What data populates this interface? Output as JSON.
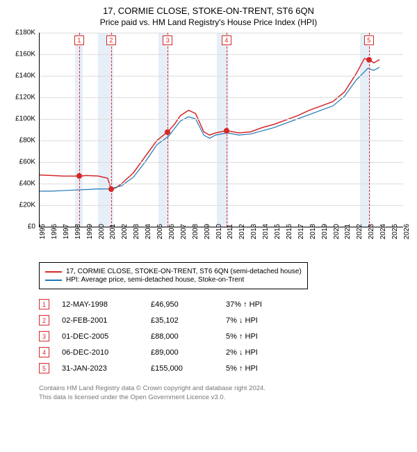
{
  "title": "17, CORMIE CLOSE, STOKE-ON-TRENT, ST6 6QN",
  "subtitle": "Price paid vs. HM Land Registry's House Price Index (HPI)",
  "chart": {
    "type": "line",
    "background_color": "#ffffff",
    "grid_color": "#dddddd",
    "ylim": [
      0,
      180000
    ],
    "ytick_step": 20000,
    "yticks": [
      "£0",
      "£20K",
      "£40K",
      "£60K",
      "£80K",
      "£100K",
      "£120K",
      "£140K",
      "£160K",
      "£180K"
    ],
    "xlim": [
      1995,
      2026
    ],
    "xticks": [
      1995,
      1996,
      1997,
      1998,
      1999,
      2000,
      2001,
      2002,
      2003,
      2004,
      2005,
      2006,
      2007,
      2008,
      2009,
      2010,
      2011,
      2012,
      2013,
      2014,
      2015,
      2016,
      2017,
      2018,
      2019,
      2020,
      2021,
      2022,
      2023,
      2024,
      2025,
      2026
    ],
    "vspans": [
      {
        "from": 1998.0,
        "to": 1998.7,
        "color": "#e6eef7"
      },
      {
        "from": 2000.0,
        "to": 2001.3,
        "color": "#e6eef7"
      },
      {
        "from": 2005.15,
        "to": 2006.05,
        "color": "#e6eef7"
      },
      {
        "from": 2010.1,
        "to": 2011.1,
        "color": "#e6eef7"
      },
      {
        "from": 2022.3,
        "to": 2023.2,
        "color": "#e6eef7"
      }
    ],
    "series": [
      {
        "name": "17, CORMIE CLOSE, STOKE-ON-TRENT, ST6 6QN (semi-detached house)",
        "color": "#d62728",
        "line_width": 1.5,
        "points": [
          [
            1995,
            48000
          ],
          [
            1996,
            47500
          ],
          [
            1997,
            47000
          ],
          [
            1998,
            46950
          ],
          [
            1998.5,
            47000
          ],
          [
            1999,
            47500
          ],
          [
            2000,
            47000
          ],
          [
            2000.8,
            45000
          ],
          [
            2001.1,
            35102
          ],
          [
            2001.5,
            36000
          ],
          [
            2002,
            40000
          ],
          [
            2003,
            50000
          ],
          [
            2004,
            65000
          ],
          [
            2005,
            80000
          ],
          [
            2005.92,
            88000
          ],
          [
            2006.5,
            95000
          ],
          [
            2007,
            103000
          ],
          [
            2007.7,
            108000
          ],
          [
            2008.3,
            105000
          ],
          [
            2009,
            88000
          ],
          [
            2009.5,
            85000
          ],
          [
            2010,
            87000
          ],
          [
            2010.93,
            89000
          ],
          [
            2011.5,
            88000
          ],
          [
            2012,
            87000
          ],
          [
            2013,
            88000
          ],
          [
            2014,
            92000
          ],
          [
            2015,
            95000
          ],
          [
            2016,
            99000
          ],
          [
            2017,
            103000
          ],
          [
            2018,
            108000
          ],
          [
            2019,
            112000
          ],
          [
            2020,
            116000
          ],
          [
            2021,
            125000
          ],
          [
            2022,
            142000
          ],
          [
            2022.7,
            156000
          ],
          [
            2023.08,
            155000
          ],
          [
            2023.5,
            152000
          ],
          [
            2024,
            155000
          ]
        ]
      },
      {
        "name": "HPI: Average price, semi-detached house, Stoke-on-Trent",
        "color": "#1f77b4",
        "line_width": 1.2,
        "points": [
          [
            1995,
            33000
          ],
          [
            1996,
            33000
          ],
          [
            1997,
            33500
          ],
          [
            1998,
            34000
          ],
          [
            1999,
            34500
          ],
          [
            2000,
            35000
          ],
          [
            2001,
            35102
          ],
          [
            2002,
            38000
          ],
          [
            2003,
            46000
          ],
          [
            2004,
            60000
          ],
          [
            2005,
            76000
          ],
          [
            2006,
            84000
          ],
          [
            2007,
            98000
          ],
          [
            2007.7,
            102000
          ],
          [
            2008.3,
            100000
          ],
          [
            2009,
            85000
          ],
          [
            2009.5,
            82000
          ],
          [
            2010,
            85000
          ],
          [
            2011,
            87000
          ],
          [
            2012,
            85000
          ],
          [
            2013,
            86000
          ],
          [
            2014,
            89000
          ],
          [
            2015,
            92000
          ],
          [
            2016,
            96000
          ],
          [
            2017,
            100000
          ],
          [
            2018,
            104000
          ],
          [
            2019,
            108000
          ],
          [
            2020,
            112000
          ],
          [
            2021,
            121000
          ],
          [
            2022,
            136000
          ],
          [
            2023,
            147000
          ],
          [
            2023.5,
            145000
          ],
          [
            2024,
            148000
          ]
        ]
      }
    ],
    "markers": [
      {
        "n": "1",
        "x": 1998.37,
        "y": 46950
      },
      {
        "n": "2",
        "x": 2001.09,
        "y": 35102
      },
      {
        "n": "3",
        "x": 2005.92,
        "y": 88000
      },
      {
        "n": "4",
        "x": 2010.93,
        "y": 89000
      },
      {
        "n": "5",
        "x": 2023.08,
        "y": 155000
      }
    ]
  },
  "legend": {
    "items": [
      {
        "color": "#d62728",
        "label": "17, CORMIE CLOSE, STOKE-ON-TRENT, ST6 6QN (semi-detached house)"
      },
      {
        "color": "#1f77b4",
        "label": "HPI: Average price, semi-detached house, Stoke-on-Trent"
      }
    ]
  },
  "transactions": [
    {
      "n": "1",
      "date": "12-MAY-1998",
      "price": "£46,950",
      "pct": "37%",
      "dir": "↑",
      "suffix": "HPI"
    },
    {
      "n": "2",
      "date": "02-FEB-2001",
      "price": "£35,102",
      "pct": "7%",
      "dir": "↓",
      "suffix": "HPI"
    },
    {
      "n": "3",
      "date": "01-DEC-2005",
      "price": "£88,000",
      "pct": "5%",
      "dir": "↑",
      "suffix": "HPI"
    },
    {
      "n": "4",
      "date": "06-DEC-2010",
      "price": "£89,000",
      "pct": "2%",
      "dir": "↓",
      "suffix": "HPI"
    },
    {
      "n": "5",
      "date": "31-JAN-2023",
      "price": "£155,000",
      "pct": "5%",
      "dir": "↑",
      "suffix": "HPI"
    }
  ],
  "footer": {
    "line1": "Contains HM Land Registry data © Crown copyright and database right 2024.",
    "line2": "This data is licensed under the Open Government Licence v3.0."
  }
}
